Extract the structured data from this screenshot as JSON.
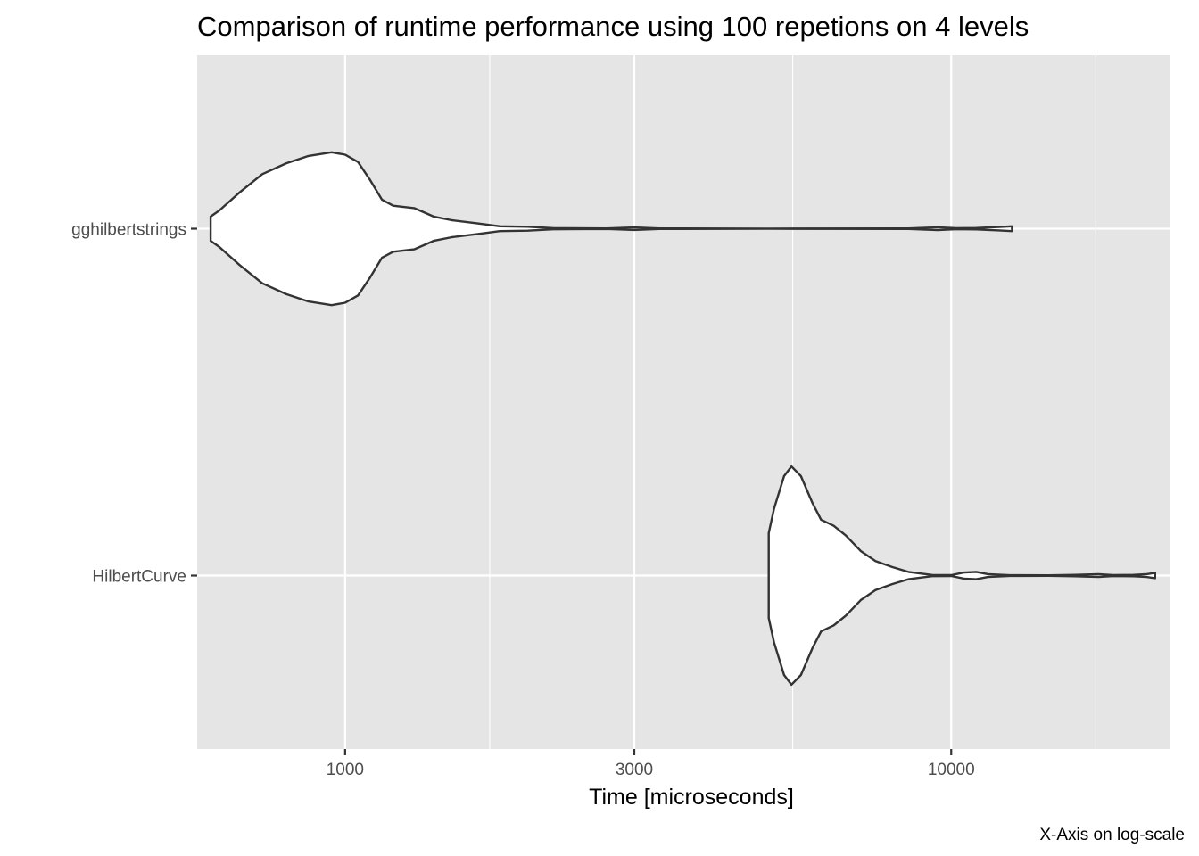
{
  "chart_data": {
    "type": "violin",
    "title": "Comparison of runtime performance using 100 repetions on 4 levels",
    "xlabel": "Time [microseconds]",
    "ylabel": "",
    "caption": "X-Axis on log-scale",
    "x_scale": "log10",
    "xlim": [
      570,
      23000
    ],
    "x_ticks": [
      1000,
      3000,
      10000
    ],
    "x_tick_labels": [
      "1000",
      "3000",
      "10000"
    ],
    "x_minor_ticks": [
      1732,
      5477,
      17321
    ],
    "grid": true,
    "background": "#e5e5e5",
    "categories": [
      "HilbertCurve",
      "gghilbertstrings"
    ],
    "series": [
      {
        "name": "gghilbertstrings",
        "min": 600,
        "max": 12600,
        "density": [
          [
            600,
            0.1
          ],
          [
            620,
            0.15
          ],
          [
            670,
            0.3
          ],
          [
            730,
            0.45
          ],
          [
            800,
            0.54
          ],
          [
            870,
            0.6
          ],
          [
            950,
            0.63
          ],
          [
            1000,
            0.61
          ],
          [
            1050,
            0.55
          ],
          [
            1100,
            0.4
          ],
          [
            1150,
            0.24
          ],
          [
            1200,
            0.19
          ],
          [
            1300,
            0.17
          ],
          [
            1400,
            0.1
          ],
          [
            1500,
            0.07
          ],
          [
            1650,
            0.045
          ],
          [
            1800,
            0.02
          ],
          [
            1900,
            0.018
          ],
          [
            2000,
            0.016
          ],
          [
            2200,
            0.005
          ],
          [
            2700,
            0.002
          ],
          [
            3000,
            0.01
          ],
          [
            3300,
            0.002
          ],
          [
            5000,
            0.001
          ],
          [
            8500,
            0.002
          ],
          [
            9500,
            0.012
          ],
          [
            10200,
            0.004
          ],
          [
            11000,
            0.006
          ],
          [
            12000,
            0.014
          ],
          [
            12600,
            0.02
          ]
        ]
      },
      {
        "name": "HilbertCurve",
        "min": 5000,
        "max": 21700,
        "density": [
          [
            5000,
            0.35
          ],
          [
            5100,
            0.55
          ],
          [
            5300,
            0.82
          ],
          [
            5450,
            0.9
          ],
          [
            5650,
            0.82
          ],
          [
            5900,
            0.6
          ],
          [
            6100,
            0.46
          ],
          [
            6400,
            0.41
          ],
          [
            6700,
            0.33
          ],
          [
            7100,
            0.2
          ],
          [
            7500,
            0.12
          ],
          [
            8000,
            0.07
          ],
          [
            8500,
            0.03
          ],
          [
            9300,
            0.005
          ],
          [
            10000,
            0.004
          ],
          [
            10500,
            0.025
          ],
          [
            11000,
            0.03
          ],
          [
            11500,
            0.012
          ],
          [
            12500,
            0.003
          ],
          [
            14500,
            0.002
          ],
          [
            16000,
            0.006
          ],
          [
            17500,
            0.012
          ],
          [
            18500,
            0.004
          ],
          [
            20000,
            0.006
          ],
          [
            21000,
            0.012
          ],
          [
            21700,
            0.022
          ]
        ]
      }
    ],
    "colors": {
      "panel": "#e5e5e5",
      "grid": "#ffffff",
      "violin_fill": "#ffffff",
      "violin_stroke": "#333333",
      "tick": "#333333"
    }
  }
}
